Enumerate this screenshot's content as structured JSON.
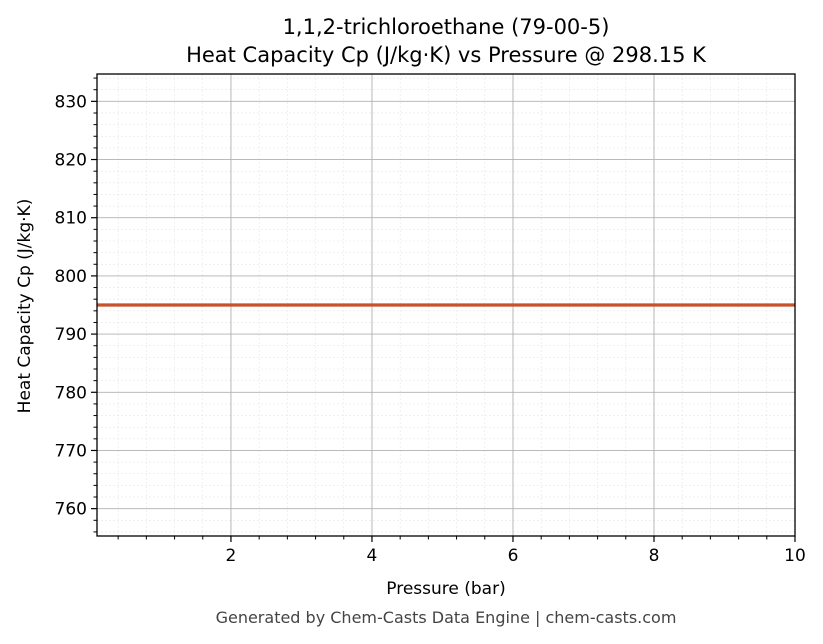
{
  "chart_data": {
    "type": "line",
    "title": "1,1,2-trichloroethane (79-00-5)",
    "subtitle": "Heat Capacity Cp (J/kg·K) vs Pressure @ 298.15 K",
    "xlabel": "Pressure (bar)",
    "ylabel": "Heat Capacity Cp (J/kg·K)",
    "xlim": [
      0.1,
      10
    ],
    "ylim": [
      755.3,
      834.7
    ],
    "x_ticks": [
      2,
      4,
      6,
      8,
      10
    ],
    "y_ticks": [
      760,
      770,
      780,
      790,
      800,
      810,
      820,
      830
    ],
    "grid": true,
    "series": [
      {
        "color": "#c8522a",
        "x": [
          0.1,
          10
        ],
        "y": [
          795.0,
          795.0
        ]
      }
    ]
  },
  "footer": "Generated by Chem-Casts Data Engine | chem-casts.com"
}
